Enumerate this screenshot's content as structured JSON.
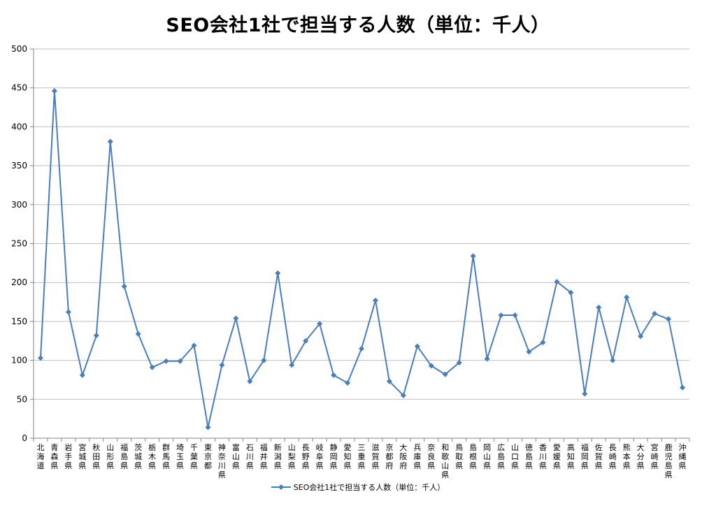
{
  "chart_data": {
    "type": "line",
    "title": "SEO会社1社で担当する人数（単位：千人）",
    "xlabel": "",
    "ylabel": "",
    "ylim": [
      0,
      500
    ],
    "yticks": [
      0,
      50,
      100,
      150,
      200,
      250,
      300,
      350,
      400,
      450,
      500
    ],
    "grid": true,
    "legend_position": "bottom",
    "color": "#4A7EBB",
    "categories": [
      "北海道",
      "青森県",
      "岩手県",
      "宮城県",
      "秋田県",
      "山形県",
      "福島県",
      "茨城県",
      "栃木県",
      "群馬県",
      "埼玉県",
      "千葉県",
      "東京都",
      "神奈川県",
      "富山県",
      "石川県",
      "福井県",
      "新潟県",
      "山梨県",
      "長野県",
      "岐阜県",
      "静岡県",
      "愛知県",
      "三重県",
      "滋賀県",
      "京都府",
      "大阪府",
      "兵庫県",
      "奈良県",
      "和歌山県",
      "鳥取県",
      "島根県",
      "岡山県",
      "広島県",
      "山口県",
      "徳島県",
      "香川県",
      "愛媛県",
      "高知県",
      "福岡県",
      "佐賀県",
      "長崎県",
      "熊本県",
      "大分県",
      "宮崎県",
      "鹿児島県",
      "沖縄県"
    ],
    "series": [
      {
        "name": "SEO会社1社で担当する人数（単位：千人）",
        "values": [
          103,
          446,
          162,
          81,
          132,
          381,
          195,
          134,
          91,
          99,
          99,
          119,
          14,
          94,
          154,
          73,
          100,
          212,
          94,
          125,
          147,
          81,
          71,
          115,
          177,
          73,
          55,
          118,
          93,
          82,
          97,
          234,
          102,
          158,
          158,
          111,
          123,
          201,
          187,
          57,
          168,
          100,
          181,
          131,
          160,
          153,
          65
        ]
      }
    ]
  }
}
